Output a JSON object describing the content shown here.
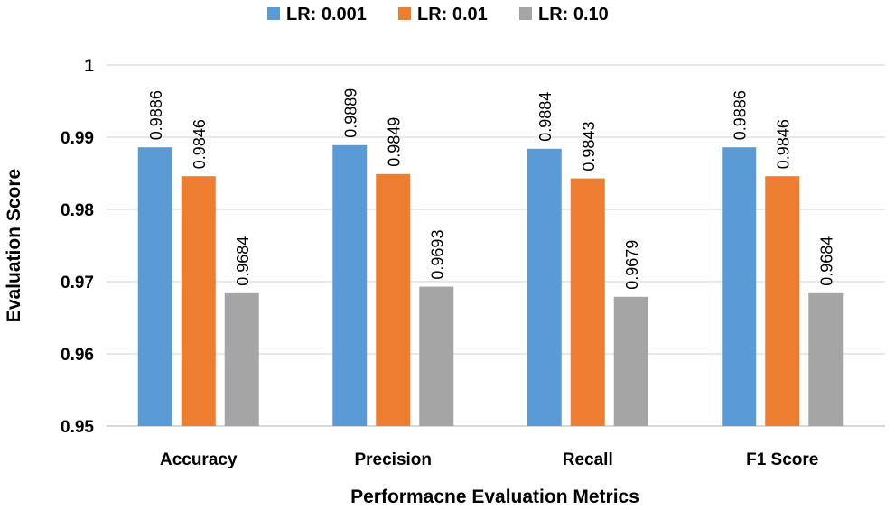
{
  "chart_data": {
    "type": "bar",
    "title": "",
    "xlabel": "Performacne Evaluation Metrics",
    "ylabel": "Evaluation Score",
    "ylim": [
      0.95,
      1
    ],
    "yticks": [
      "0.95",
      "0.96",
      "0.97",
      "0.98",
      "0.99",
      "1"
    ],
    "grid": true,
    "legend_position": "top",
    "categories": [
      "Accuracy",
      "Precision",
      "Recall",
      "F1 Score"
    ],
    "series": [
      {
        "name": "LR: 0.001",
        "color": "#5B9BD5",
        "values": [
          0.9886,
          0.9889,
          0.9884,
          0.9886
        ]
      },
      {
        "name": "LR: 0.01",
        "color": "#ED7D31",
        "values": [
          0.9846,
          0.9849,
          0.9843,
          0.9846
        ]
      },
      {
        "name": "LR: 0.10",
        "color": "#A5A5A5",
        "values": [
          0.9684,
          0.9693,
          0.9679,
          0.9684
        ]
      }
    ]
  }
}
